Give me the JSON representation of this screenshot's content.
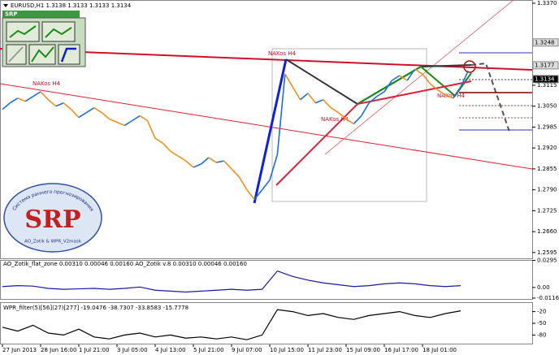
{
  "window": {
    "symbol_info": "EURUSD,H1  1.3138 1.3133 1.3133 1.3134",
    "panel_label": "SRP"
  },
  "logo": {
    "title": "SRP",
    "ring_text": "Система раннего прогнозирования",
    "footer": "AO_Zotik & WPR_V2mask"
  },
  "chart_data": [
    {
      "type": "line",
      "name": "EURUSD,H1",
      "up_color": "#1c6fd6",
      "down_color": "#f0901e",
      "categories": [
        "27 Jun 2013",
        null,
        null,
        null,
        null,
        "28 Jun 16:00",
        null,
        null,
        null,
        null,
        "1 Jul 21:00",
        null,
        null,
        null,
        null,
        "3 Jul 05:00",
        null,
        null,
        null,
        null,
        "4 Jul 13:00",
        null,
        null,
        null,
        null,
        "5 Jul 21:00",
        null,
        null,
        null,
        null,
        "9 Jul 07:00",
        null,
        null,
        null,
        null,
        "10 Jul 15:00",
        null,
        null,
        null,
        null,
        "11 Jul 23:00",
        null,
        null,
        null,
        null,
        "15 Jul 09:00",
        null,
        null,
        null,
        null,
        "16 Jul 17:00",
        null,
        null,
        null,
        null,
        "18 Jul 01:00",
        null,
        null,
        null,
        null,
        null,
        null
      ],
      "values": [
        1.304,
        1.306,
        1.3075,
        1.3065,
        1.308,
        1.3095,
        1.307,
        1.305,
        1.306,
        1.304,
        1.3015,
        1.303,
        1.3045,
        1.303,
        1.301,
        1.3,
        1.299,
        1.3005,
        1.302,
        1.3005,
        1.295,
        1.2935,
        1.291,
        1.2895,
        1.288,
        1.286,
        1.287,
        1.289,
        1.2875,
        1.288,
        1.2855,
        1.283,
        1.279,
        1.276,
        1.279,
        1.282,
        1.29,
        1.315,
        1.311,
        1.307,
        1.309,
        1.306,
        1.307,
        1.3045,
        1.303,
        1.301,
        1.2995,
        1.302,
        1.306,
        1.308,
        1.3095,
        1.313,
        1.3145,
        1.313,
        1.3165,
        1.315,
        1.312,
        1.31,
        1.3085,
        1.3075,
        1.311,
        1.316
      ],
      "ylim": [
        1.2577,
        1.338
      ],
      "yticks": [
        {
          "value": 1.337,
          "label": "1.3370"
        },
        1.3115,
        {
          "value": 1.305,
          "label": "1.3050"
        },
        1.2985,
        {
          "value": 1.292,
          "label": "1.2920"
        },
        1.2855,
        {
          "value": 1.279,
          "label": "1.2790"
        },
        1.2725,
        {
          "value": 1.266,
          "label": "1.2660"
        },
        1.2595
      ],
      "levels": [
        1.3248,
        1.3177,
        1.3134
      ],
      "annotations": [
        "NAKos H4",
        "NAKos H4",
        "NAKos H4",
        "NAKos H4"
      ]
    },
    {
      "type": "line",
      "name": "AO_Zotik_flat_zone 0.00310 0.00046 0.00160  AO_Zotik v.8 0.00310 0.00046 0.00160",
      "color": "#1a1aa0",
      "values": [
        0.001,
        0.002,
        0.0015,
        -0.001,
        -0.002,
        -0.0015,
        -0.001,
        -0.002,
        -0.001,
        0.0005,
        -0.003,
        -0.004,
        -0.005,
        -0.004,
        -0.003,
        -0.002,
        -0.003,
        -0.002,
        0.018,
        0.012,
        0.008,
        0.005,
        0.003,
        0.001,
        0.002,
        0.004,
        0.005,
        0.004,
        0.002,
        0.001,
        0.002
      ],
      "ylim": [
        -0.0125,
        0.03
      ],
      "yticks": [
        0.0295,
        {
          "value": 0,
          "label": "0.00"
        },
        -0.0116
      ]
    },
    {
      "type": "line",
      "name": "WPR_filter(5)[56](27)[277] -19.0476 -38.7307 -33.8583 -15.7778",
      "color": "#000000",
      "values": [
        -60,
        -70,
        -55,
        -75,
        -80,
        -65,
        -85,
        -90,
        -80,
        -75,
        -85,
        -80,
        -88,
        -85,
        -90,
        -85,
        -92,
        -80,
        -15,
        -20,
        -30,
        -25,
        -35,
        -40,
        -30,
        -25,
        -20,
        -30,
        -35,
        -25,
        -18
      ],
      "ylim": [
        -100,
        0
      ],
      "yticks": [
        -20,
        -50,
        -80
      ]
    }
  ]
}
